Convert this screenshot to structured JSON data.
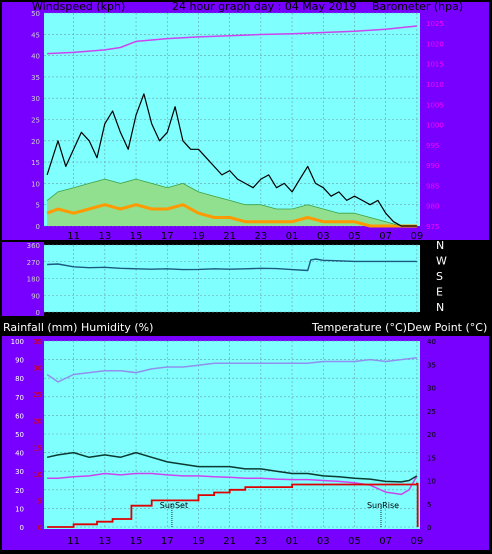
{
  "header": {
    "left_title": "Windspeed (kph)",
    "center_title": "24 hour graph day : 04 May 2019",
    "right_title": "Barometer (hpa)"
  },
  "lower_header": {
    "left_a": "Rainfall (mm)",
    "left_b": "Humidity (%)",
    "right": "Temperature (°C)Dew Point (°C)"
  },
  "colors": {
    "frame": "#7700ff",
    "plot_bg": "#80ffff",
    "grid": "#6aa0a8",
    "wind_gust": "#000000",
    "wind_avg": "#90e090",
    "wind_calm": "#ff9900",
    "barometer": "#cc44ee",
    "direction": "#1a5a80",
    "humidity": "#9090ee",
    "temperature": "#0a3a30",
    "dewpoint": "#cc44ee",
    "rainfall": "#dd0000"
  },
  "chart_data": [
    {
      "type": "line",
      "name_key": "wind_baro",
      "x_ticks": [
        "11",
        "13",
        "15",
        "17",
        "19",
        "21",
        "23",
        "01",
        "03",
        "05",
        "07",
        "09"
      ],
      "y_left_ticks": [
        "0",
        "5",
        "10",
        "15",
        "20",
        "25",
        "30",
        "35",
        "40",
        "45",
        "50"
      ],
      "y_left_range": [
        0,
        50
      ],
      "y_right_ticks": [
        "975",
        "980",
        "985",
        "990",
        "995",
        "1000",
        "1005",
        "1010",
        "1015",
        "1020",
        "1025"
      ],
      "y_right_range": [
        975,
        1027.5
      ],
      "series": [
        {
          "key": "gust",
          "hours": [
            9.3,
            10,
            10.5,
            11,
            11.5,
            12,
            12.5,
            13,
            13.5,
            14,
            14.5,
            15,
            15.5,
            16,
            16.5,
            17,
            17.5,
            18,
            18.5,
            19,
            19.5,
            20,
            20.5,
            21,
            21.5,
            22,
            22.5,
            23,
            23.5,
            24,
            24.5,
            25,
            25.5,
            26,
            26.5,
            27,
            27.5,
            28,
            28.5,
            29,
            29.5,
            30,
            30.5,
            31,
            31.5,
            32,
            32.5,
            33
          ],
          "values": [
            12,
            20,
            14,
            18,
            22,
            20,
            16,
            24,
            27,
            22,
            18,
            26,
            31,
            24,
            20,
            22,
            28,
            20,
            18,
            18,
            16,
            14,
            12,
            13,
            11,
            10,
            9,
            11,
            12,
            9,
            10,
            8,
            11,
            14,
            10,
            9,
            7,
            8,
            6,
            7,
            6,
            5,
            6,
            3,
            1,
            0,
            0,
            0
          ]
        },
        {
          "key": "avg",
          "hours": [
            9.3,
            10,
            11,
            12,
            13,
            14,
            15,
            16,
            17,
            18,
            19,
            20,
            21,
            22,
            23,
            24,
            25,
            26,
            27,
            28,
            29,
            30,
            31,
            32,
            33
          ],
          "values": [
            6,
            8,
            9,
            10,
            11,
            10,
            11,
            10,
            9,
            10,
            8,
            7,
            6,
            5,
            5,
            4,
            4,
            5,
            4,
            3,
            3,
            2,
            1,
            0,
            0
          ]
        },
        {
          "key": "calm",
          "hours": [
            9.3,
            10,
            11,
            12,
            13,
            14,
            15,
            16,
            17,
            18,
            19,
            20,
            21,
            22,
            23,
            24,
            25,
            26,
            27,
            28,
            29,
            30,
            31,
            32,
            33
          ],
          "values": [
            3,
            4,
            3,
            4,
            5,
            4,
            5,
            4,
            4,
            5,
            3,
            2,
            2,
            1,
            1,
            1,
            1,
            2,
            1,
            1,
            1,
            0,
            0,
            0,
            0
          ]
        },
        {
          "key": "barometer",
          "hours": [
            9.3,
            11,
            13,
            14,
            15,
            17,
            19,
            21,
            23,
            25,
            27,
            29,
            31,
            33
          ],
          "values": [
            1017.5,
            1017.8,
            1018.4,
            1019,
            1020.5,
            1021.2,
            1021.6,
            1021.9,
            1022.2,
            1022.4,
            1022.7,
            1023,
            1023.5,
            1024.3
          ]
        }
      ]
    },
    {
      "type": "line",
      "name_key": "direction",
      "y_left_ticks": [
        "360",
        "270",
        "180",
        "90",
        "0"
      ],
      "y_right_ticks": [
        "N",
        "W",
        "S",
        "E",
        "N"
      ],
      "y_range": [
        0,
        360
      ],
      "series": [
        {
          "key": "direction",
          "hours": [
            9.3,
            10,
            11,
            12,
            13,
            14,
            15,
            16,
            17,
            18,
            19,
            20,
            21,
            22,
            23,
            24,
            25,
            26,
            26.2,
            26.5,
            27,
            28,
            29,
            30,
            31,
            32,
            33
          ],
          "values": [
            255,
            258,
            243,
            238,
            240,
            235,
            232,
            230,
            232,
            228,
            229,
            232,
            230,
            232,
            235,
            233,
            228,
            223,
            280,
            285,
            278,
            275,
            272,
            272,
            272,
            272,
            272
          ]
        }
      ]
    },
    {
      "type": "line",
      "name_key": "rain_hum_temp",
      "y_left_ticks": [
        "0",
        "10",
        "20",
        "30",
        "40",
        "50",
        "60",
        "70",
        "80",
        "90",
        "100"
      ],
      "y_left_range": [
        0,
        100
      ],
      "y_rain_ticks": [
        "0",
        "5",
        "10",
        "15",
        "20",
        "25",
        "30",
        "35"
      ],
      "y_right_ticks": [
        "0",
        "5",
        "10",
        "15",
        "20",
        "25",
        "30",
        "35",
        "40"
      ],
      "y_right_range": [
        0,
        40
      ],
      "annotations": [
        {
          "text": "SunSet",
          "hour": 17.3
        },
        {
          "text": "SunRise",
          "hour": 30.7
        }
      ],
      "series": [
        {
          "key": "humidity",
          "hours": [
            9.3,
            10,
            11,
            12,
            13,
            14,
            15,
            16,
            17,
            18,
            19,
            20,
            21,
            22,
            23,
            24,
            25,
            26,
            27,
            28,
            29,
            30,
            31,
            32,
            33
          ],
          "values": [
            82,
            78,
            82,
            83,
            84,
            84,
            83,
            85,
            86,
            86,
            87,
            88,
            88,
            88,
            88,
            88,
            88,
            88,
            89,
            89,
            89,
            90,
            89,
            90,
            91
          ]
        },
        {
          "key": "temperature",
          "hours": [
            9.3,
            10,
            11,
            12,
            13,
            14,
            15,
            16,
            17,
            18,
            19,
            20,
            21,
            22,
            23,
            24,
            25,
            26,
            27,
            28,
            29,
            30,
            31,
            32,
            32.5,
            33
          ],
          "values": [
            15,
            15.5,
            16,
            15,
            15.5,
            15,
            16,
            15,
            14,
            13.5,
            13,
            13,
            13,
            12.5,
            12.5,
            12,
            11.5,
            11.5,
            11,
            10.8,
            10.5,
            10.3,
            9.8,
            9.7,
            10,
            11
          ]
        },
        {
          "key": "dewpoint",
          "hours": [
            9.3,
            10,
            11,
            12,
            13,
            14,
            15,
            16,
            17,
            18,
            19,
            20,
            21,
            22,
            23,
            24,
            25,
            26,
            27,
            28,
            29,
            30,
            31,
            32,
            32.5,
            33
          ],
          "values": [
            10.5,
            10.5,
            10.8,
            11,
            11.5,
            11.2,
            11.5,
            11.5,
            11.2,
            11,
            11,
            10.8,
            10.7,
            10.5,
            10.5,
            10.3,
            10.2,
            10.2,
            10.0,
            9.8,
            9.5,
            9,
            7.5,
            7,
            8,
            11
          ]
        },
        {
          "key": "rainfall",
          "hours": [
            9.3,
            11,
            12.5,
            13.5,
            14,
            14.7,
            15,
            16,
            17,
            18,
            19,
            20,
            21,
            22,
            24,
            25,
            26,
            28,
            29,
            30,
            31,
            32,
            33
          ],
          "values": [
            0,
            0.5,
            1,
            1.5,
            1.5,
            4,
            4,
            5,
            5,
            5,
            6,
            6.5,
            7,
            7.5,
            7.5,
            8,
            8,
            8,
            8,
            8,
            8,
            8,
            8.3
          ]
        }
      ]
    }
  ]
}
